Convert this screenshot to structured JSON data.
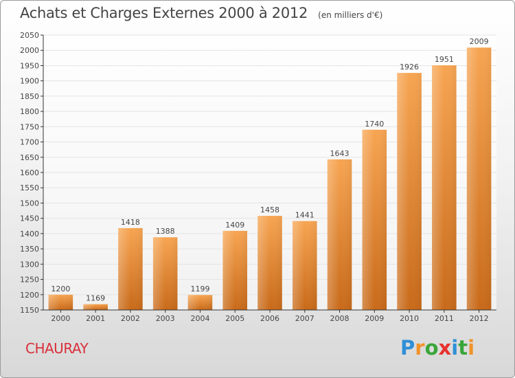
{
  "title": "Achats et Charges Externes 2000 à 2012",
  "subtitle": "(en milliers d'€)",
  "commune": "CHAURAY",
  "logo": {
    "text": "Proxiti",
    "letters": [
      {
        "ch": "P",
        "color": "#2f8fd8"
      },
      {
        "ch": "r",
        "color": "#f0932a"
      },
      {
        "ch": "o",
        "color": "#3aa53a"
      },
      {
        "ch": "x",
        "color": "#e8322e"
      },
      {
        "ch": "i",
        "color": "#2f8fd8"
      },
      {
        "ch": "t",
        "color": "#3aa53a"
      },
      {
        "ch": "i",
        "color": "#f0932a"
      }
    ]
  },
  "colors": {
    "bar_light": "#f7a552",
    "bar_dark": "#c86a1a",
    "grid": "#e4e4e4",
    "axis": "#333333",
    "text": "#444444"
  },
  "chart_data": {
    "type": "bar",
    "categories": [
      "2000",
      "2001",
      "2002",
      "2003",
      "2004",
      "2005",
      "2006",
      "2007",
      "2008",
      "2009",
      "2010",
      "2011",
      "2012"
    ],
    "values": [
      1200,
      1169,
      1418,
      1388,
      1199,
      1409,
      1458,
      1441,
      1643,
      1740,
      1926,
      1951,
      2009
    ],
    "ylim": [
      1150,
      2050
    ],
    "yticks": [
      1150,
      1200,
      1250,
      1300,
      1350,
      1400,
      1450,
      1500,
      1550,
      1600,
      1650,
      1700,
      1750,
      1800,
      1850,
      1900,
      1950,
      2000,
      2050
    ],
    "grid": true,
    "title": "Achats et Charges Externes 2000 à 2012",
    "xlabel": "",
    "ylabel": ""
  }
}
